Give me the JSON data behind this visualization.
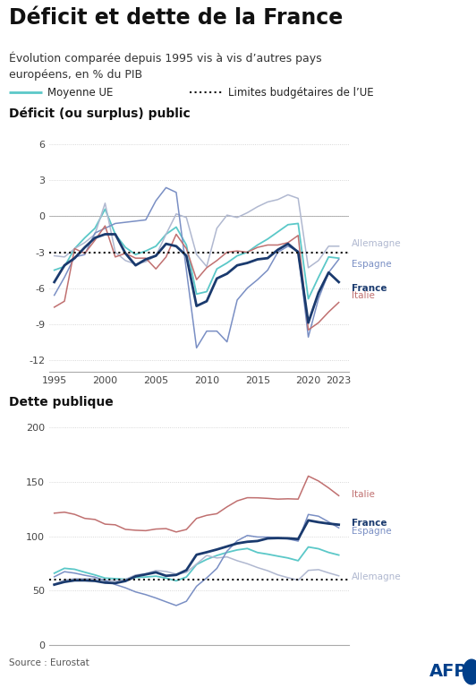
{
  "title": "Déficit et dette de la France",
  "subtitle": "Évolution comparée depuis 1995 vis à vis d’autres pays\neuropéens, en % du PIB",
  "legend_ue": "Moyenne UE",
  "legend_limit": "Limites budgétaires de l’UE",
  "section1_title": "Déficit (ou surplus) public",
  "section2_title": "Dette publique",
  "source": "Source : Eurostat",
  "deficit_years": [
    1995,
    1996,
    1997,
    1998,
    1999,
    2000,
    2001,
    2002,
    2003,
    2004,
    2005,
    2006,
    2007,
    2008,
    2009,
    2010,
    2011,
    2012,
    2013,
    2014,
    2015,
    2016,
    2017,
    2018,
    2019,
    2020,
    2021,
    2022,
    2023
  ],
  "deficit_france": [
    -5.5,
    -4.1,
    -3.5,
    -2.6,
    -1.8,
    -1.5,
    -1.5,
    -3.1,
    -4.1,
    -3.6,
    -3.3,
    -2.3,
    -2.5,
    -3.3,
    -7.5,
    -7.1,
    -5.2,
    -4.8,
    -4.1,
    -3.9,
    -3.6,
    -3.5,
    -2.8,
    -2.3,
    -3.0,
    -8.9,
    -6.4,
    -4.7,
    -5.5
  ],
  "deficit_allemagne": [
    -3.3,
    -3.4,
    -2.7,
    -2.2,
    -1.5,
    1.1,
    -3.0,
    -3.7,
    -4.0,
    -3.8,
    -3.3,
    -1.5,
    0.2,
    -0.1,
    -3.2,
    -4.2,
    -1.0,
    0.1,
    -0.1,
    0.3,
    0.8,
    1.2,
    1.4,
    1.8,
    1.5,
    -4.3,
    -3.7,
    -2.5,
    -2.5
  ],
  "deficit_espagne": [
    -6.6,
    -5.1,
    -3.4,
    -3.2,
    -1.4,
    -1.0,
    -0.6,
    -0.5,
    -0.4,
    -0.3,
    1.3,
    2.4,
    2.0,
    -4.5,
    -11.0,
    -9.6,
    -9.6,
    -10.5,
    -7.0,
    -6.0,
    -5.3,
    -4.5,
    -3.0,
    -2.5,
    -2.9,
    -10.1,
    -6.9,
    -4.7,
    -3.6
  ],
  "deficit_italie": [
    -7.6,
    -7.1,
    -2.7,
    -3.1,
    -2.0,
    -0.8,
    -3.4,
    -3.1,
    -3.5,
    -3.5,
    -4.4,
    -3.4,
    -1.5,
    -2.7,
    -5.3,
    -4.3,
    -3.7,
    -3.0,
    -2.9,
    -3.0,
    -2.6,
    -2.4,
    -2.4,
    -2.2,
    -1.6,
    -9.5,
    -8.9,
    -8.0,
    -7.2
  ],
  "deficit_ue": [
    -4.5,
    -4.2,
    -2.7,
    -1.8,
    -1.0,
    0.6,
    -1.5,
    -2.6,
    -3.2,
    -2.9,
    -2.5,
    -1.5,
    -0.9,
    -2.4,
    -6.5,
    -6.3,
    -4.4,
    -3.9,
    -3.3,
    -3.0,
    -2.4,
    -1.9,
    -1.3,
    -0.7,
    -0.6,
    -6.9,
    -5.1,
    -3.4,
    -3.5
  ],
  "debt_years": [
    1995,
    1996,
    1997,
    1998,
    1999,
    2000,
    2001,
    2002,
    2003,
    2004,
    2005,
    2006,
    2007,
    2008,
    2009,
    2010,
    2011,
    2012,
    2013,
    2014,
    2015,
    2016,
    2017,
    2018,
    2019,
    2020,
    2021,
    2022,
    2023
  ],
  "debt_france": [
    55.5,
    58.0,
    59.4,
    59.4,
    58.9,
    57.3,
    56.9,
    58.8,
    63.1,
    64.9,
    66.8,
    63.6,
    64.4,
    68.8,
    83.0,
    85.3,
    87.8,
    90.6,
    93.4,
    94.9,
    95.6,
    98.0,
    98.3,
    98.1,
    97.4,
    114.6,
    112.9,
    111.6,
    110.6
  ],
  "debt_allemagne": [
    55.6,
    59.8,
    61.0,
    60.9,
    61.2,
    59.7,
    59.1,
    60.4,
    64.4,
    65.6,
    68.5,
    67.6,
    65.2,
    66.7,
    74.5,
    82.3,
    80.0,
    81.0,
    77.5,
    74.7,
    71.2,
    68.3,
    64.5,
    61.9,
    59.6,
    68.6,
    69.3,
    66.3,
    63.6
  ],
  "debt_espagne": [
    62.7,
    67.4,
    66.1,
    64.1,
    62.4,
    59.3,
    55.6,
    52.6,
    48.8,
    46.3,
    43.2,
    39.7,
    36.3,
    40.2,
    54.0,
    61.7,
    70.4,
    86.3,
    95.8,
    100.7,
    99.3,
    99.2,
    98.7,
    97.6,
    95.5,
    120.0,
    118.4,
    113.2,
    107.7
  ],
  "debt_italie": [
    121.2,
    122.1,
    120.1,
    116.4,
    115.4,
    111.1,
    110.5,
    106.3,
    105.5,
    105.1,
    106.6,
    107.0,
    103.9,
    106.2,
    116.4,
    119.2,
    120.7,
    127.0,
    132.5,
    135.4,
    135.3,
    134.8,
    134.1,
    134.4,
    134.1,
    155.3,
    150.8,
    144.4,
    137.3
  ],
  "debt_ue": [
    66.0,
    70.5,
    69.6,
    66.9,
    64.4,
    61.5,
    61.0,
    60.4,
    62.1,
    62.5,
    63.3,
    61.5,
    59.0,
    62.5,
    74.0,
    78.7,
    82.3,
    85.1,
    87.4,
    88.7,
    85.0,
    83.5,
    81.7,
    80.0,
    77.5,
    90.1,
    88.5,
    85.1,
    82.7
  ],
  "color_france": "#1a3a6e",
  "color_allemagne": "#b0b8d0",
  "color_espagne": "#7a8fc4",
  "color_italie": "#c07070",
  "color_ue": "#5bc8c8",
  "color_limit": "#111111",
  "color_bg": "#ffffff",
  "color_grid": "#cccccc",
  "deficit_ylim": [
    -13,
    7
  ],
  "deficit_yticks": [
    -12,
    -9,
    -6,
    -3,
    0,
    3,
    6
  ],
  "debt_ylim": [
    0,
    210
  ],
  "debt_yticks": [
    0,
    50,
    100,
    150,
    200
  ],
  "xlim": [
    1994.5,
    2024
  ]
}
